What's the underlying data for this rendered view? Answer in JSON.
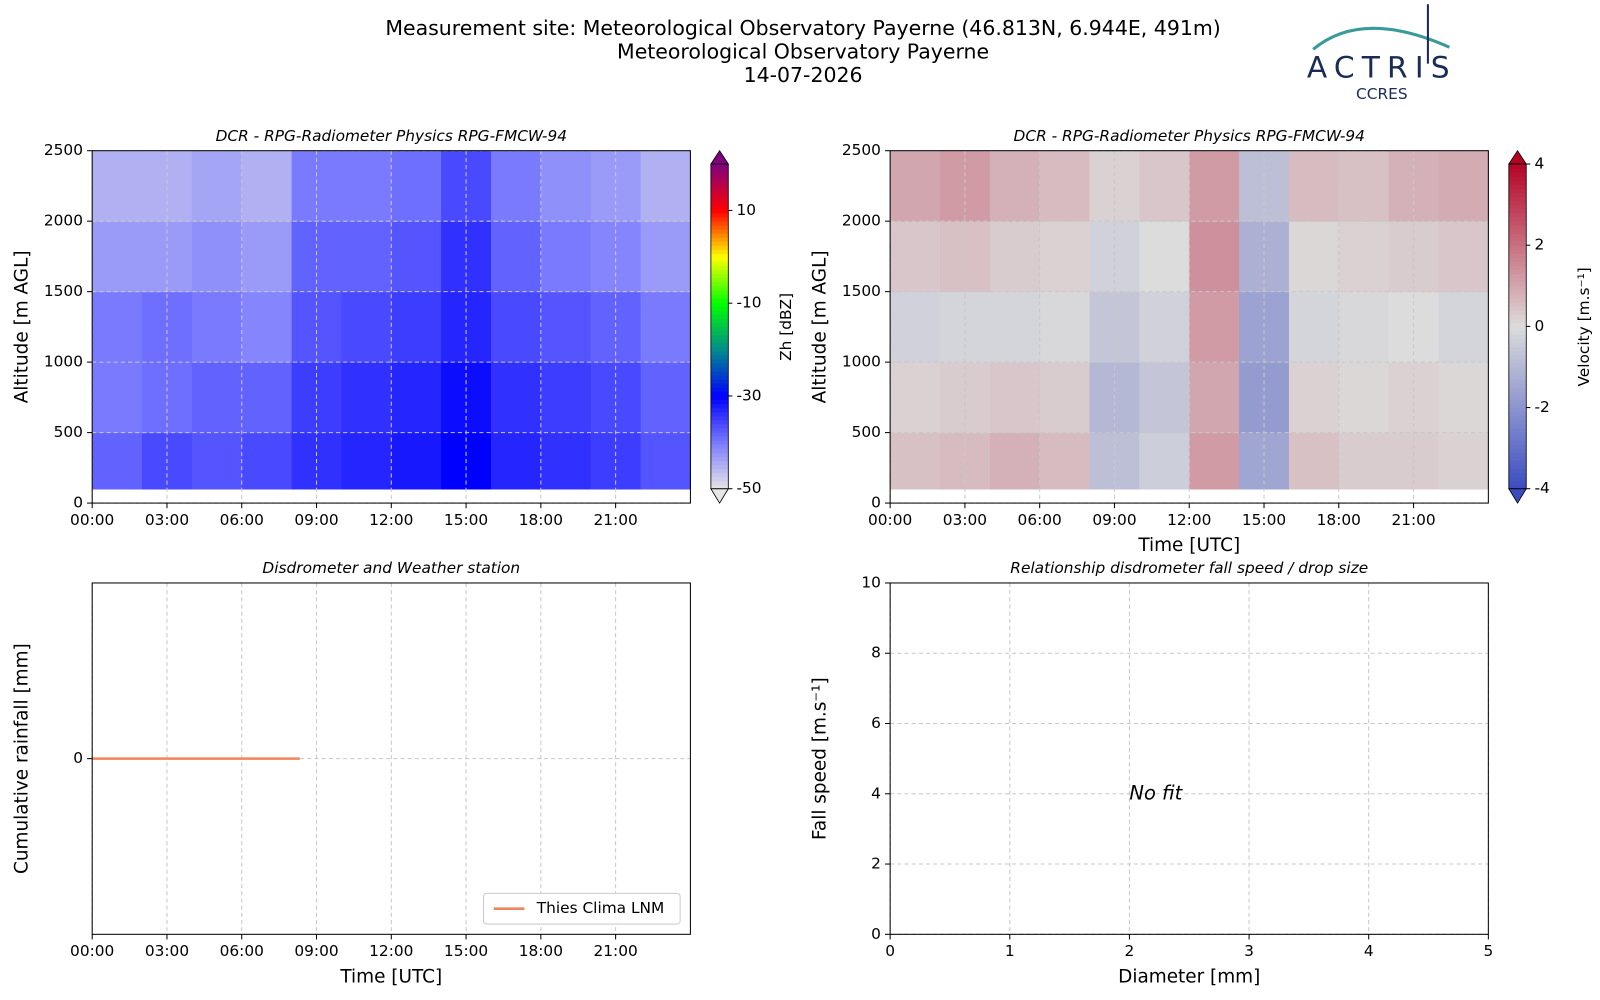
{
  "header": {
    "title_lines": [
      "Measurement site: Meteorological Observatory Payerne (46.813N, 6.944E, 491m)",
      "Meteorological Observatory Payerne",
      "14-07-2026"
    ],
    "logo_name": "ACTRIS",
    "logo_sub": "CCRES"
  },
  "chart_data": [
    {
      "type": "heatmap",
      "title": "DCR - RPG-Radiometer Physics RPG-FMCW-94",
      "ylabel": "Altitude [m AGL]",
      "colorbar_label": "Zh [dBZ]",
      "x": [
        0,
        2,
        4,
        6,
        8,
        10,
        12,
        14,
        16,
        18,
        20,
        22,
        24
      ],
      "y": [
        100,
        500,
        1000,
        1500,
        2000,
        2500
      ],
      "z": [
        [
          -38,
          -36,
          -37,
          -36,
          -34,
          -33,
          -32,
          -30,
          -33,
          -34,
          -35,
          -37
        ],
        [
          -40,
          -39,
          -38,
          -38,
          -35,
          -34,
          -33,
          -31,
          -34,
          -35,
          -36,
          -38
        ],
        [
          -40,
          -39,
          -40,
          -41,
          -37,
          -36,
          -35,
          -33,
          -36,
          -37,
          -38,
          -40
        ],
        [
          -43,
          -43,
          -42,
          -43,
          -38,
          -38,
          -37,
          -34,
          -38,
          -40,
          -41,
          -43
        ],
        [
          -45,
          -45,
          -44,
          -45,
          -40,
          -40,
          -39,
          -36,
          -40,
          -42,
          -43,
          -45
        ]
      ],
      "xlim": [
        0,
        24
      ],
      "xticks": [
        {
          "value": 0,
          "label": "00:00"
        },
        {
          "value": 3,
          "label": "03:00"
        },
        {
          "value": 6,
          "label": "06:00"
        },
        {
          "value": 9,
          "label": "09:00"
        },
        {
          "value": 12,
          "label": "12:00"
        },
        {
          "value": 15,
          "label": "15:00"
        },
        {
          "value": 18,
          "label": "18:00"
        },
        {
          "value": 21,
          "label": "21:00"
        }
      ],
      "ylim": [
        0,
        2500
      ],
      "yticks": [
        0,
        500,
        1000,
        1500,
        2000,
        2500
      ],
      "zlim": [
        -50,
        20
      ],
      "zticks": [
        -50,
        -30,
        -10,
        10
      ],
      "colorscale": [
        "#e6e6e6",
        "#7a7aff",
        "#0000ff",
        "#008c8c",
        "#00ff00",
        "#ffff00",
        "#ff0000",
        "#800080"
      ],
      "grid": true
    },
    {
      "type": "heatmap",
      "title": "DCR - RPG-Radiometer Physics RPG-FMCW-94",
      "xlabel": "Time [UTC]",
      "ylabel": "Altitude [m AGL]",
      "colorbar_label": "Velocity [m.s⁻¹]",
      "x": [
        0,
        2,
        4,
        6,
        8,
        10,
        12,
        14,
        16,
        18,
        20,
        22,
        24
      ],
      "y": [
        100,
        500,
        1000,
        1500,
        2000,
        2500
      ],
      "z": [
        [
          0.5,
          0.6,
          0.8,
          0.6,
          -0.8,
          -0.4,
          1.2,
          -1.5,
          0.5,
          0.3,
          0.3,
          0.2
        ],
        [
          0.2,
          0.3,
          0.4,
          0.3,
          -1,
          -0.6,
          1,
          -1.8,
          0.2,
          0.1,
          0.2,
          0.1
        ],
        [
          -0.3,
          -0.2,
          -0.2,
          -0.1,
          -0.6,
          -0.3,
          1.2,
          -1.6,
          -0.2,
          -0.1,
          0,
          -0.2
        ],
        [
          0.4,
          0.5,
          0.3,
          0.2,
          -0.3,
          0,
          1.4,
          -1.2,
          0.1,
          0.2,
          0.3,
          0.4
        ],
        [
          1,
          1.2,
          0.8,
          0.6,
          0.2,
          0.4,
          1.2,
          -0.8,
          0.6,
          0.5,
          0.8,
          0.9
        ]
      ],
      "xlim": [
        0,
        24
      ],
      "xticks": [
        {
          "value": 0,
          "label": "00:00"
        },
        {
          "value": 3,
          "label": "03:00"
        },
        {
          "value": 6,
          "label": "06:00"
        },
        {
          "value": 9,
          "label": "09:00"
        },
        {
          "value": 12,
          "label": "12:00"
        },
        {
          "value": 15,
          "label": "15:00"
        },
        {
          "value": 18,
          "label": "18:00"
        },
        {
          "value": 21,
          "label": "21:00"
        }
      ],
      "ylim": [
        0,
        2500
      ],
      "yticks": [
        0,
        500,
        1000,
        1500,
        2000,
        2500
      ],
      "zlim": [
        -4,
        4
      ],
      "zticks": [
        -4,
        -2,
        0,
        2,
        4
      ],
      "colorscale": [
        "#3b4cc0",
        "#dcdcdc",
        "#b40426"
      ],
      "grid": true
    },
    {
      "type": "line",
      "title": "Disdrometer and Weather station",
      "xlabel": "Time [UTC]",
      "ylabel": "Cumulative rainfall [mm]",
      "x": [
        0,
        8.33
      ],
      "series": [
        {
          "name": "Thies Clima LNM",
          "color": "#f0845a",
          "values": [
            0,
            0
          ]
        }
      ],
      "xlim": [
        0,
        24
      ],
      "xticks": [
        {
          "value": 0,
          "label": "00:00"
        },
        {
          "value": 3,
          "label": "03:00"
        },
        {
          "value": 6,
          "label": "06:00"
        },
        {
          "value": 9,
          "label": "09:00"
        },
        {
          "value": 12,
          "label": "12:00"
        },
        {
          "value": 15,
          "label": "15:00"
        },
        {
          "value": 18,
          "label": "18:00"
        },
        {
          "value": 21,
          "label": "21:00"
        }
      ],
      "ylim": [
        -0.055,
        0.055
      ],
      "yticks": [
        0
      ],
      "legend": "lower right",
      "grid": true
    },
    {
      "type": "scatter",
      "title": "Relationship disdrometer fall speed / drop size",
      "xlabel": "Diameter [mm]",
      "ylabel": "Fall speed [m.s⁻¹]",
      "annotation": {
        "text": "No fit",
        "x": 2,
        "y": 4
      },
      "xlim": [
        0,
        5
      ],
      "xticks": [
        0,
        1,
        2,
        3,
        4,
        5
      ],
      "ylim": [
        0,
        10
      ],
      "yticks": [
        0,
        2,
        4,
        6,
        8,
        10
      ],
      "grid": true
    }
  ]
}
